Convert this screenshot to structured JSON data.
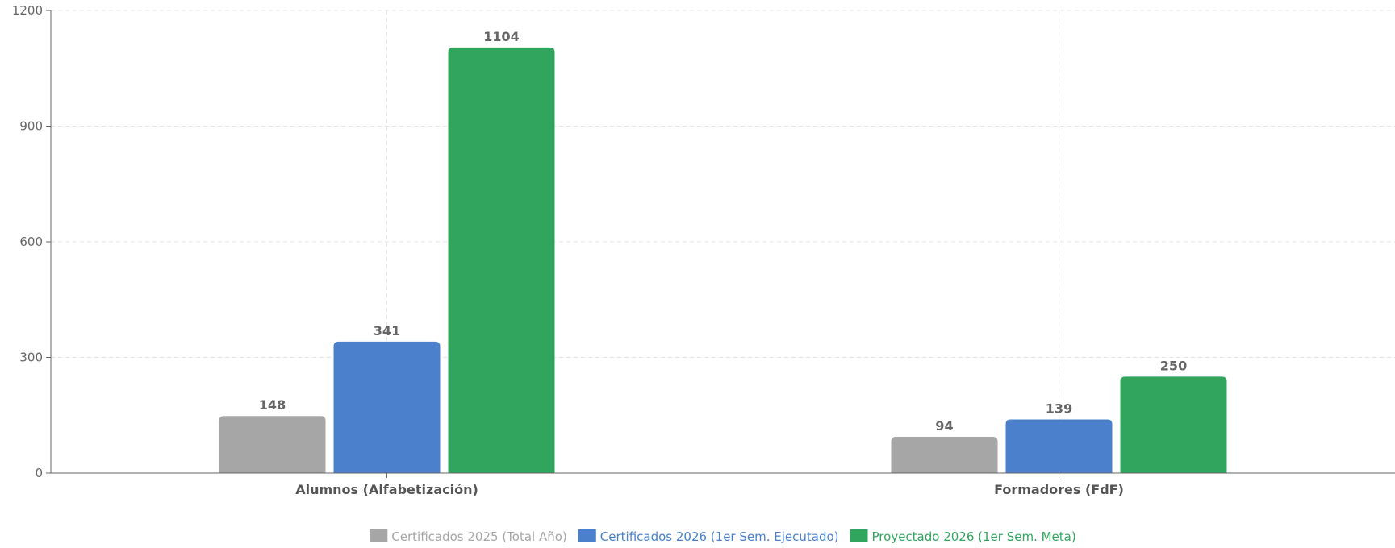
{
  "chart_data": {
    "type": "bar",
    "categories": [
      "Alumnos (Alfabetización)",
      "Formadores (FdF)"
    ],
    "series": [
      {
        "name": "Certificados 2025 (Total Año)",
        "values": [
          148,
          94
        ],
        "color": "#a6a6a6"
      },
      {
        "name": "Certificados 2026 (1er Sem. Ejecutado)",
        "values": [
          341,
          139
        ],
        "color": "#4a80cc"
      },
      {
        "name": "Proyectado 2026 (1er Sem. Meta)",
        "values": [
          1104,
          250
        ],
        "color": "#31a55e"
      }
    ],
    "title": "",
    "xlabel": "",
    "ylabel": "",
    "ylim": [
      0,
      1200
    ],
    "yticks": [
      0,
      300,
      600,
      900,
      1200
    ],
    "grid": true,
    "legend_position": "bottom-center",
    "data_labels": true
  }
}
